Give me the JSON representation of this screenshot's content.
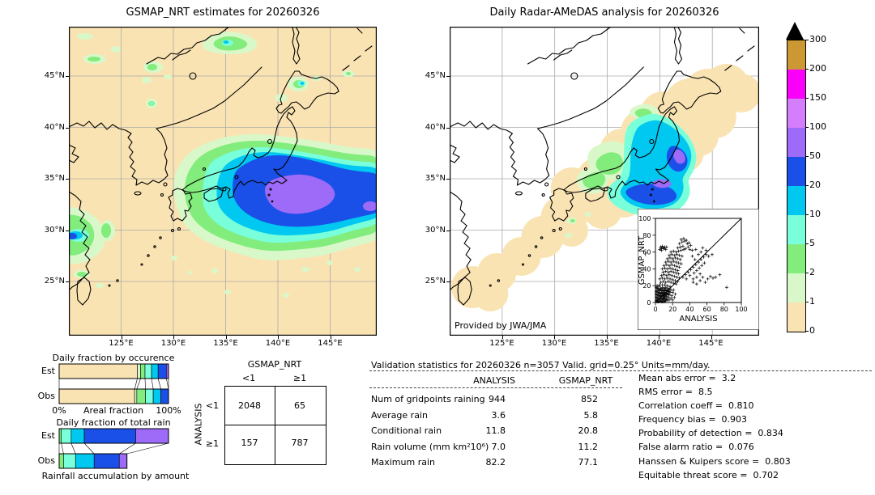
{
  "titles": {
    "left": "GSMAP_NRT estimates for 20260326",
    "right": "Daily Radar-AMeDAS analysis for 20260326"
  },
  "credit": "Provided by JWA/JMA",
  "axis": {
    "lon_ticks": [
      "125°E",
      "130°E",
      "135°E",
      "140°E",
      "145°E"
    ],
    "lat_ticks": [
      "45°N",
      "40°N",
      "35°N",
      "30°N",
      "25°N"
    ]
  },
  "colorbar": {
    "levels_top_to_bottom": [
      "300",
      "200",
      "150",
      "100",
      "50",
      "20",
      "10",
      "5",
      "2",
      "1",
      "0"
    ],
    "colors_top_to_bottom": [
      "#cc9833",
      "#fa00fa",
      "#d57efb",
      "#9d6bf7",
      "#1a50e8",
      "#00c8f0",
      "#79ffda",
      "#82ec7c",
      "#d9f8c9",
      "#fae3b2"
    ],
    "overflow_color": "#000000",
    "units": "mm/day"
  },
  "chart_data": [
    {
      "id": "occurrence_fraction",
      "type": "bar",
      "title": "Daily fraction by occurence",
      "xlabel": "Areal fraction",
      "x_min_label": "0%",
      "x_max_label": "100%",
      "levels": [
        "0-1",
        "1-2",
        "2-5",
        "5-10",
        "10-20",
        "20-50",
        "50-100"
      ],
      "colors": [
        "#fae3b2",
        "#d9f8c9",
        "#82ec7c",
        "#79ffda",
        "#00c8f0",
        "#1a50e8",
        "#9d6bf7"
      ],
      "series": [
        {
          "name": "Est",
          "values": [
            71.5,
            3,
            4,
            6,
            6,
            7.5,
            2
          ]
        },
        {
          "name": "Obs",
          "values": [
            69,
            2,
            8,
            7,
            7,
            7,
            0
          ]
        }
      ]
    },
    {
      "id": "total_rain_fraction",
      "type": "bar",
      "title": "Daily fraction of total rain",
      "caption": "Rainfall accumulation by amount",
      "levels": [
        "2-5",
        "5-10",
        "10-20",
        "20-50",
        "50-100"
      ],
      "colors": [
        "#82ec7c",
        "#79ffda",
        "#00c8f0",
        "#1a50e8",
        "#9d6bf7"
      ],
      "series": [
        {
          "name": "Est",
          "values": [
            2,
            9,
            12,
            47,
            30
          ]
        },
        {
          "name": "Obs",
          "values": [
            4,
            11,
            17,
            23,
            7
          ]
        }
      ]
    },
    {
      "id": "contingency",
      "type": "table",
      "col_group": "GSMAP_NRT",
      "row_group": "ANALYSIS",
      "col_labels": [
        "<1",
        "≥1"
      ],
      "row_labels": [
        "<1",
        "≥1"
      ],
      "values": [
        [
          "2048",
          "65"
        ],
        [
          "157",
          "787"
        ]
      ]
    },
    {
      "id": "validation",
      "type": "table",
      "header": "Validation statistics for 20260326  n=3057 Valid. grid=0.25° Units=mm/day.",
      "columns": [
        "ANALYSIS",
        "GSMAP_NRT"
      ],
      "rows": [
        {
          "label": "Num of gridpoints raining",
          "values": [
            "944",
            "852"
          ]
        },
        {
          "label": "Average rain",
          "values": [
            "3.6",
            "5.8"
          ]
        },
        {
          "label": "Conditional rain",
          "values": [
            "11.8",
            "20.8"
          ]
        },
        {
          "label": "Rain volume (mm km²10⁶)",
          "values": [
            "7.0",
            "11.2"
          ]
        },
        {
          "label": "Maximum rain",
          "values": [
            "82.2",
            "77.1"
          ]
        }
      ],
      "scores": [
        {
          "label": "Mean abs error",
          "value": "3.2"
        },
        {
          "label": "RMS error",
          "value": "8.5"
        },
        {
          "label": "Correlation coeff",
          "value": "0.810"
        },
        {
          "label": "Frequency bias",
          "value": "0.903"
        },
        {
          "label": "Probability of detection",
          "value": "0.834"
        },
        {
          "label": "False alarm ratio",
          "value": "0.076"
        },
        {
          "label": "Hanssen & Kuipers score",
          "value": "0.803"
        },
        {
          "label": "Equitable threat score",
          "value": "0.702"
        }
      ]
    },
    {
      "id": "scatter_inset",
      "type": "scatter",
      "xlabel": "ANALYSIS",
      "ylabel": "GSMAP_NRT",
      "xlim": [
        0,
        100
      ],
      "ylim": [
        0,
        100
      ],
      "ticks": [
        "0",
        "20",
        "40",
        "60",
        "80",
        "100"
      ],
      "identity_line": true,
      "points": [
        [
          3,
          1
        ],
        [
          5,
          2
        ],
        [
          7,
          1
        ],
        [
          9,
          3
        ],
        [
          11,
          2
        ],
        [
          4,
          4
        ],
        [
          6,
          5
        ],
        [
          8,
          4
        ],
        [
          10,
          5
        ],
        [
          12,
          4
        ],
        [
          2,
          3
        ],
        [
          14,
          3
        ],
        [
          5,
          7
        ],
        [
          7,
          8
        ],
        [
          9,
          7
        ],
        [
          11,
          8
        ],
        [
          13,
          7
        ],
        [
          3,
          9
        ],
        [
          15,
          6
        ],
        [
          6,
          10
        ],
        [
          8,
          11
        ],
        [
          10,
          10
        ],
        [
          12,
          11
        ],
        [
          14,
          10
        ],
        [
          4,
          12
        ],
        [
          16,
          9
        ],
        [
          5,
          14
        ],
        [
          7,
          15
        ],
        [
          9,
          14
        ],
        [
          11,
          15
        ],
        [
          13,
          14
        ],
        [
          15,
          13
        ],
        [
          3,
          16
        ],
        [
          17,
          12
        ],
        [
          6,
          17
        ],
        [
          8,
          18
        ],
        [
          10,
          17
        ],
        [
          12,
          18
        ],
        [
          14,
          17
        ],
        [
          16,
          16
        ],
        [
          4,
          19
        ],
        [
          18,
          15
        ],
        [
          2,
          6
        ],
        [
          1,
          10
        ],
        [
          2,
          14
        ],
        [
          1,
          18
        ],
        [
          19,
          8
        ],
        [
          20,
          12
        ],
        [
          18,
          5
        ],
        [
          16,
          3
        ],
        [
          20,
          3
        ],
        [
          22,
          6
        ],
        [
          21,
          15
        ],
        [
          23,
          10
        ],
        [
          2,
          20
        ],
        [
          5,
          21
        ],
        [
          8,
          21
        ],
        [
          11,
          21
        ],
        [
          14,
          20
        ],
        [
          17,
          19
        ],
        [
          1,
          2
        ],
        [
          2,
          1
        ],
        [
          4,
          1
        ],
        [
          6,
          2
        ],
        [
          8,
          1
        ],
        [
          10,
          1
        ],
        [
          12,
          2
        ],
        [
          3,
          5
        ],
        [
          5,
          4
        ],
        [
          7,
          5
        ],
        [
          9,
          5
        ],
        [
          11,
          6
        ],
        [
          13,
          4
        ],
        [
          1,
          6
        ],
        [
          2,
          9
        ],
        [
          4,
          8
        ],
        [
          6,
          8
        ],
        [
          8,
          8
        ],
        [
          10,
          8
        ],
        [
          12,
          9
        ],
        [
          1,
          13
        ],
        [
          3,
          12
        ],
        [
          5,
          11
        ],
        [
          7,
          12
        ],
        [
          9,
          11
        ],
        [
          11,
          12
        ],
        [
          13,
          11
        ],
        [
          15,
          10
        ],
        [
          2,
          17
        ],
        [
          4,
          16
        ],
        [
          6,
          15
        ],
        [
          8,
          15
        ],
        [
          10,
          14
        ],
        [
          12,
          15
        ],
        [
          14,
          14
        ],
        [
          16,
          13
        ],
        [
          6,
          24
        ],
        [
          9,
          25
        ],
        [
          12,
          24
        ],
        [
          15,
          25
        ],
        [
          18,
          24
        ],
        [
          21,
          23
        ],
        [
          24,
          22
        ],
        [
          5,
          28
        ],
        [
          8,
          29
        ],
        [
          11,
          28
        ],
        [
          14,
          29
        ],
        [
          17,
          28
        ],
        [
          20,
          27
        ],
        [
          23,
          26
        ],
        [
          26,
          25
        ],
        [
          7,
          32
        ],
        [
          10,
          33
        ],
        [
          13,
          32
        ],
        [
          16,
          33
        ],
        [
          19,
          32
        ],
        [
          22,
          31
        ],
        [
          25,
          30
        ],
        [
          28,
          29
        ],
        [
          9,
          36
        ],
        [
          12,
          37
        ],
        [
          15,
          36
        ],
        [
          18,
          37
        ],
        [
          21,
          36
        ],
        [
          24,
          35
        ],
        [
          27,
          34
        ],
        [
          8,
          40
        ],
        [
          11,
          41
        ],
        [
          14,
          40
        ],
        [
          17,
          41
        ],
        [
          20,
          40
        ],
        [
          23,
          39
        ],
        [
          26,
          38
        ],
        [
          10,
          44
        ],
        [
          13,
          45
        ],
        [
          16,
          44
        ],
        [
          19,
          45
        ],
        [
          22,
          44
        ],
        [
          25,
          43
        ],
        [
          28,
          42
        ],
        [
          12,
          48
        ],
        [
          15,
          49
        ],
        [
          18,
          48
        ],
        [
          21,
          49
        ],
        [
          24,
          48
        ],
        [
          27,
          47
        ],
        [
          30,
          46
        ],
        [
          14,
          52
        ],
        [
          17,
          53
        ],
        [
          20,
          52
        ],
        [
          23,
          53
        ],
        [
          26,
          52
        ],
        [
          29,
          51
        ],
        [
          16,
          56
        ],
        [
          19,
          57
        ],
        [
          22,
          56
        ],
        [
          25,
          57
        ],
        [
          28,
          56
        ],
        [
          31,
          55
        ],
        [
          18,
          60
        ],
        [
          21,
          61
        ],
        [
          5,
          63
        ],
        [
          7,
          64
        ],
        [
          9,
          65
        ],
        [
          11,
          66
        ],
        [
          6,
          66
        ],
        [
          8,
          67
        ],
        [
          10,
          64
        ],
        [
          12,
          63
        ],
        [
          13,
          66
        ],
        [
          7,
          62
        ],
        [
          24,
          60
        ],
        [
          27,
          61
        ],
        [
          30,
          62
        ],
        [
          33,
          63
        ],
        [
          26,
          65
        ],
        [
          29,
          66
        ],
        [
          32,
          67
        ],
        [
          35,
          64
        ],
        [
          28,
          70
        ],
        [
          31,
          72
        ],
        [
          34,
          73
        ],
        [
          37,
          70
        ],
        [
          30,
          75
        ],
        [
          33,
          76
        ],
        [
          36,
          74
        ],
        [
          39,
          71
        ],
        [
          41,
          68
        ],
        [
          38,
          66
        ],
        [
          40,
          63
        ],
        [
          43,
          62
        ],
        [
          32,
          30
        ],
        [
          35,
          33
        ],
        [
          38,
          36
        ],
        [
          41,
          39
        ],
        [
          44,
          42
        ],
        [
          47,
          45
        ],
        [
          50,
          48
        ],
        [
          53,
          51
        ],
        [
          56,
          54
        ],
        [
          59,
          57
        ],
        [
          45,
          35
        ],
        [
          48,
          38
        ],
        [
          51,
          41
        ],
        [
          54,
          44
        ],
        [
          57,
          47
        ],
        [
          36,
          28
        ],
        [
          40,
          32
        ],
        [
          44,
          28
        ],
        [
          48,
          30
        ],
        [
          52,
          34
        ],
        [
          44,
          24
        ],
        [
          48,
          22
        ],
        [
          52,
          26
        ],
        [
          55,
          30
        ],
        [
          58,
          24
        ],
        [
          61,
          28
        ],
        [
          64,
          31
        ],
        [
          67,
          29
        ],
        [
          70,
          30
        ],
        [
          62,
          55
        ],
        [
          66,
          57
        ],
        [
          59,
          62
        ],
        [
          55,
          65
        ],
        [
          83,
          18
        ],
        [
          75,
          33
        ],
        [
          47,
          63
        ],
        [
          50,
          57
        ],
        [
          53,
          60
        ],
        [
          46,
          51
        ],
        [
          43,
          55
        ]
      ]
    }
  ]
}
